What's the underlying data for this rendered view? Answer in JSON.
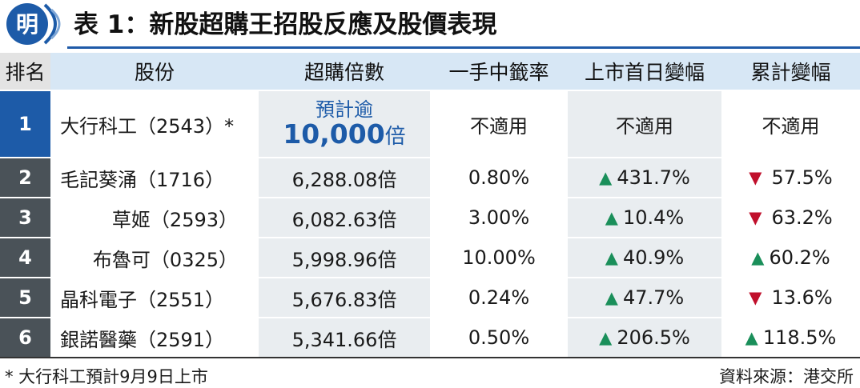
{
  "header": {
    "logo_char": "明",
    "title": "表 1：新股超購王招股反應及股價表現",
    "accent_color": "#1d5ba8"
  },
  "table": {
    "columns": [
      "排名",
      "股份",
      "超購倍數",
      "一手中籤率",
      "上市首日變幅",
      "累計變幅"
    ],
    "rows": [
      {
        "rank": "1",
        "stock": "大行科工（2543）*",
        "times_line1": "預計逾",
        "times_value": "10,000",
        "times_unit": "倍",
        "ratio": "不適用",
        "first_day": "不適用",
        "first_dir": "",
        "cumulative": "不適用",
        "cum_dir": ""
      },
      {
        "rank": "2",
        "stock": "毛記葵涌（1716）",
        "times": "6,288.08倍",
        "ratio": "0.80%",
        "first_day": "431.7%",
        "first_dir": "up",
        "cumulative": "57.5%",
        "cum_dir": "down"
      },
      {
        "rank": "3",
        "stock": "草姬（2593）",
        "times": "6,082.63倍",
        "ratio": "3.00%",
        "first_day": "10.4%",
        "first_dir": "up",
        "cumulative": "63.2%",
        "cum_dir": "down"
      },
      {
        "rank": "4",
        "stock": "布魯可（0325）",
        "times": "5,998.96倍",
        "ratio": "10.00%",
        "first_day": "40.9%",
        "first_dir": "up",
        "cumulative": "60.2%",
        "cum_dir": "up"
      },
      {
        "rank": "5",
        "stock": "晶科電子（2551）",
        "times": "5,676.83倍",
        "ratio": "0.24%",
        "first_day": "47.7%",
        "first_dir": "up",
        "cumulative": "13.6%",
        "cum_dir": "down"
      },
      {
        "rank": "6",
        "stock": "銀諾醫藥（2591）",
        "times": "5,341.66倍",
        "ratio": "0.50%",
        "first_day": "206.5%",
        "first_dir": "up",
        "cumulative": "118.5%",
        "cum_dir": "up"
      }
    ],
    "colors": {
      "up": "#1a8f5a",
      "down": "#c0102c",
      "rank_first": "#1d5ba8",
      "rank_other": "#4a5258"
    }
  },
  "footer": {
    "footnote": "* 大行科工預計9月9日上市",
    "source": "資料來源：港交所"
  }
}
